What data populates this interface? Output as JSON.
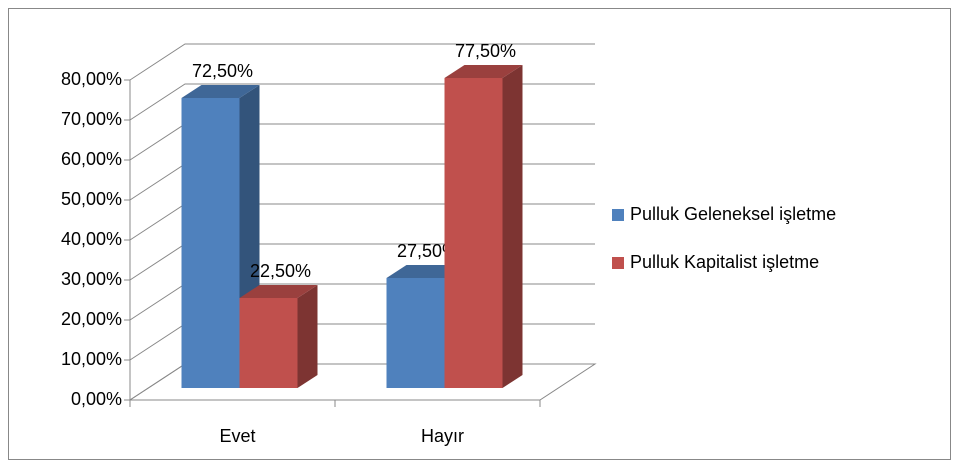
{
  "chart_data": {
    "type": "bar3d",
    "categories": [
      "Evet",
      "Hayır"
    ],
    "series": [
      {
        "name": "Pulluk Geleneksel işletme",
        "color": "#4f81bd",
        "values": [
          72.5,
          27.5
        ],
        "value_labels": [
          "72,50%",
          "27,50%"
        ]
      },
      {
        "name": "Pulluk Kapitalist işletme",
        "color": "#c0504d",
        "values": [
          22.5,
          77.5
        ],
        "value_labels": [
          "22,50%",
          "77,50%"
        ]
      }
    ],
    "ylim": [
      0,
      80
    ],
    "yticks": [
      {
        "value": 0,
        "label": "0,00%"
      },
      {
        "value": 10,
        "label": "10,00%"
      },
      {
        "value": 20,
        "label": "20,00%"
      },
      {
        "value": 30,
        "label": "30,00%"
      },
      {
        "value": 40,
        "label": "40,00%"
      },
      {
        "value": 50,
        "label": "50,00%"
      },
      {
        "value": 60,
        "label": "60,00%"
      },
      {
        "value": 70,
        "label": "70,00%"
      },
      {
        "value": 80,
        "label": "80,00%"
      }
    ],
    "grid": true,
    "legend": "right"
  }
}
